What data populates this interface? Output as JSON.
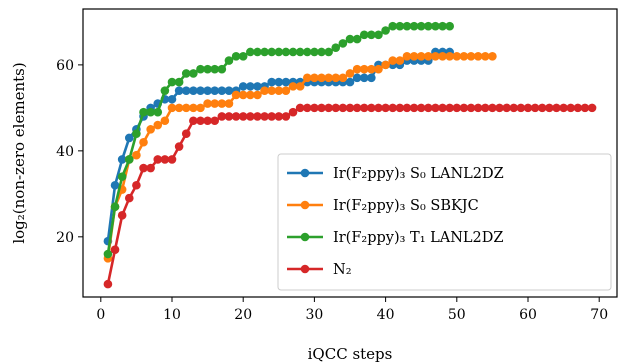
{
  "chart_data": {
    "type": "line",
    "title": "",
    "xlabel": "iQCC steps",
    "ylabel": "log₂(non-zero elements)",
    "xlim": [
      -2.5,
      72.5
    ],
    "ylim": [
      6,
      73
    ],
    "xticks": [
      0,
      10,
      20,
      30,
      40,
      50,
      60,
      70
    ],
    "yticks": [
      20,
      40,
      60
    ],
    "grid": false,
    "legend_position": "lower-right",
    "series": [
      {
        "name": "Ir(F₂ppy)₃ S₀ LANL2DZ",
        "color": "#1f77b4",
        "x": [
          1,
          2,
          3,
          4,
          5,
          6,
          7,
          8,
          9,
          10,
          11,
          12,
          13,
          14,
          15,
          16,
          17,
          18,
          19,
          20,
          21,
          22,
          23,
          24,
          25,
          26,
          27,
          28,
          29,
          30,
          31,
          32,
          33,
          34,
          35,
          36,
          37,
          38,
          39,
          40,
          41,
          42,
          43,
          44,
          45,
          46,
          47,
          48,
          49
        ],
        "y": [
          19,
          32,
          38,
          43,
          45,
          48,
          50,
          51,
          52,
          52,
          54,
          54,
          54,
          54,
          54,
          54,
          54,
          54,
          54,
          55,
          55,
          55,
          55,
          56,
          56,
          56,
          56,
          56,
          56,
          56,
          56,
          56,
          56,
          56,
          56,
          57,
          57,
          57,
          60,
          60,
          60,
          60,
          61,
          61,
          61,
          61,
          63,
          63,
          63
        ]
      },
      {
        "name": "Ir(F₂ppy)₃ S₀ SBKJC",
        "color": "#ff7f0e",
        "x": [
          1,
          2,
          3,
          4,
          5,
          6,
          7,
          8,
          9,
          10,
          11,
          12,
          13,
          14,
          15,
          16,
          17,
          18,
          19,
          20,
          21,
          22,
          23,
          24,
          25,
          26,
          27,
          28,
          29,
          30,
          31,
          32,
          33,
          34,
          35,
          36,
          37,
          38,
          39,
          40,
          41,
          42,
          43,
          44,
          45,
          46,
          47,
          48,
          49,
          50,
          51,
          52,
          53,
          54,
          55
        ],
        "y": [
          15,
          27,
          31,
          38,
          39,
          42,
          45,
          46,
          47,
          50,
          50,
          50,
          50,
          50,
          51,
          51,
          51,
          51,
          53,
          53,
          53,
          53,
          54,
          54,
          54,
          54,
          55,
          55,
          57,
          57,
          57,
          57,
          57,
          57,
          58,
          59,
          59,
          59,
          59,
          60,
          61,
          61,
          62,
          62,
          62,
          62,
          62,
          62,
          62,
          62,
          62,
          62,
          62,
          62,
          62
        ]
      },
      {
        "name": "Ir(F₂ppy)₃ T₁ LANL2DZ",
        "color": "#2ca02c",
        "x": [
          1,
          2,
          3,
          4,
          5,
          6,
          7,
          8,
          9,
          10,
          11,
          12,
          13,
          14,
          15,
          16,
          17,
          18,
          19,
          20,
          21,
          22,
          23,
          24,
          25,
          26,
          27,
          28,
          29,
          30,
          31,
          32,
          33,
          34,
          35,
          36,
          37,
          38,
          39,
          40,
          41,
          42,
          43,
          44,
          45,
          46,
          47,
          48,
          49
        ],
        "y": [
          16,
          27,
          34,
          38,
          44,
          49,
          49,
          49,
          54,
          56,
          56,
          58,
          58,
          59,
          59,
          59,
          59,
          61,
          62,
          62,
          63,
          63,
          63,
          63,
          63,
          63,
          63,
          63,
          63,
          63,
          63,
          63,
          64,
          65,
          66,
          66,
          67,
          67,
          67,
          68,
          69,
          69,
          69,
          69,
          69,
          69,
          69,
          69,
          69
        ]
      },
      {
        "name": "N₂",
        "color": "#d62728",
        "x": [
          1,
          2,
          3,
          4,
          5,
          6,
          7,
          8,
          9,
          10,
          11,
          12,
          13,
          14,
          15,
          16,
          17,
          18,
          19,
          20,
          21,
          22,
          23,
          24,
          25,
          26,
          27,
          28,
          29,
          30,
          31,
          32,
          33,
          34,
          35,
          36,
          37,
          38,
          39,
          40,
          41,
          42,
          43,
          44,
          45,
          46,
          47,
          48,
          49,
          50,
          51,
          52,
          53,
          54,
          55,
          56,
          57,
          58,
          59,
          60,
          61,
          62,
          63,
          64,
          65,
          66,
          67,
          68,
          69
        ],
        "y": [
          9,
          17,
          25,
          29,
          32,
          36,
          36,
          38,
          38,
          38,
          41,
          44,
          47,
          47,
          47,
          47,
          48,
          48,
          48,
          48,
          48,
          48,
          48,
          48,
          48,
          48,
          49,
          50,
          50,
          50,
          50,
          50,
          50,
          50,
          50,
          50,
          50,
          50,
          50,
          50,
          50,
          50,
          50,
          50,
          50,
          50,
          50,
          50,
          50,
          50,
          50,
          50,
          50,
          50,
          50,
          50,
          50,
          50,
          50,
          50,
          50,
          50,
          50,
          50,
          50,
          50,
          50,
          50,
          50
        ]
      }
    ]
  }
}
